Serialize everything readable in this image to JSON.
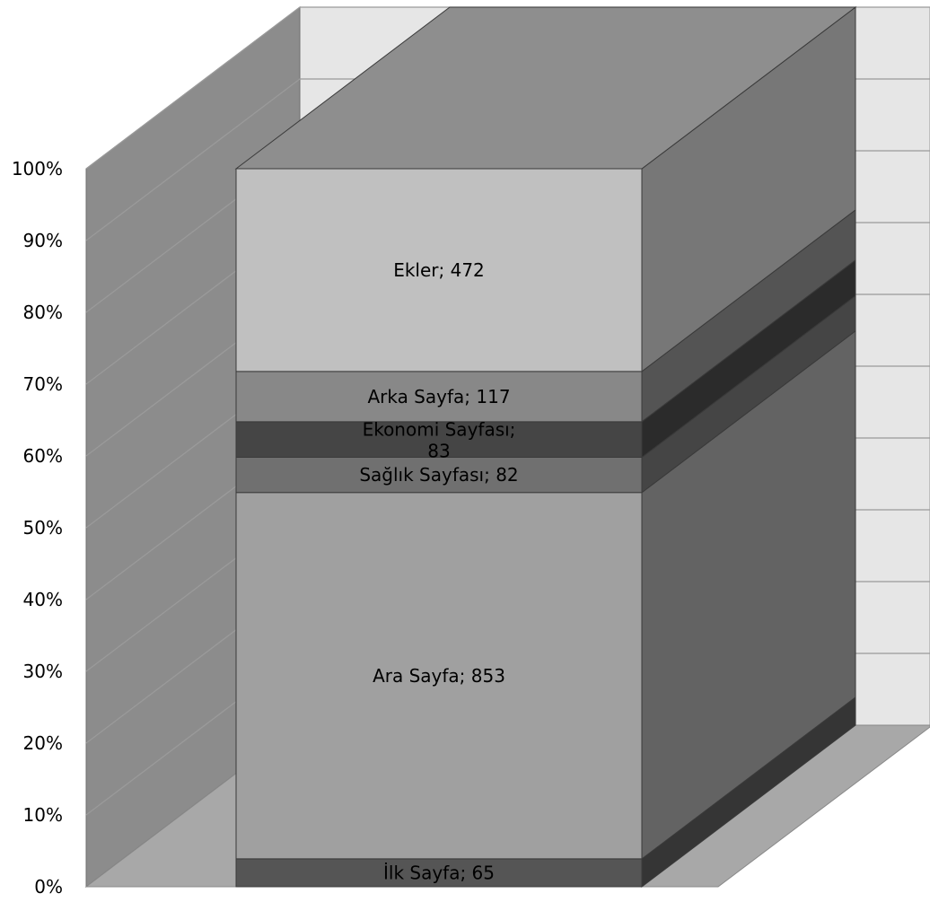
{
  "chart_data": {
    "type": "bar",
    "stacked": true,
    "percent_stacked": true,
    "three_d": true,
    "series": [
      {
        "name": "İlk Sayfa",
        "value": 65,
        "label": "İlk Sayfa; 65",
        "color": "#555555"
      },
      {
        "name": "Ara Sayfa",
        "value": 853,
        "label": "Ara Sayfa; 853",
        "color": "#a0a0a0"
      },
      {
        "name": "Sağlık Sayfası",
        "value": 82,
        "label": "Sağlık Sayfası; 82",
        "color": "#707070"
      },
      {
        "name": "Ekonomi Sayfası",
        "value": 83,
        "label": "Ekonomi Sayfası; 83",
        "color": "#454545"
      },
      {
        "name": "Arka Sayfa",
        "value": 117,
        "label": "Arka Sayfa; 117",
        "color": "#888888"
      },
      {
        "name": "Ekler",
        "value": 472,
        "label": "Ekler; 472",
        "color": "#c0c0c0"
      }
    ],
    "y_ticks": [
      "0%",
      "10%",
      "20%",
      "30%",
      "40%",
      "50%",
      "60%",
      "70%",
      "80%",
      "90%",
      "100%"
    ],
    "ylim": [
      0,
      100
    ],
    "grid": true,
    "legend": false,
    "colors": {
      "back_wall": "#e6e6e6",
      "side_wall": "#8c8c8c",
      "floor": "#a8a8a8",
      "gridline": "#9a9a9a",
      "bar_top": "#8e8e8e"
    }
  }
}
